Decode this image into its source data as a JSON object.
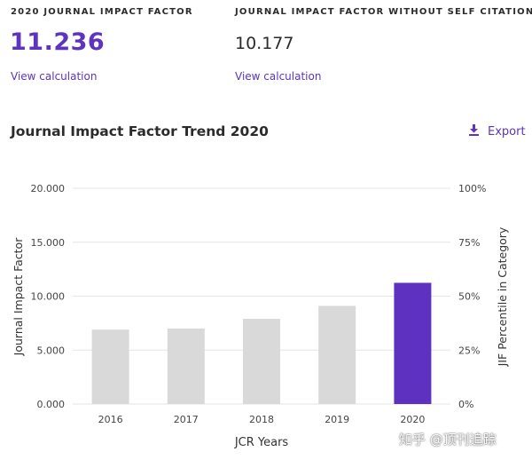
{
  "metrics": {
    "jif_label": "2020 JOURNAL IMPACT FACTOR",
    "jif_value": "11.236",
    "jif_link": "View calculation",
    "jif_nsc_label": "JOURNAL IMPACT FACTOR WITHOUT SELF CITATIONS",
    "jif_nsc_value": "10.177",
    "jif_nsc_link": "View calculation"
  },
  "trend": {
    "title": "Journal Impact Factor Trend 2020",
    "export_label": "Export",
    "export_icon": "download-icon"
  },
  "colors": {
    "accent": "#5e33bf",
    "bar_default": "#d9d9d9",
    "bar_highlight": "#5e31c0",
    "grid": "#e6e6e6"
  },
  "chart_data": {
    "type": "bar",
    "categories": [
      "2016",
      "2017",
      "2018",
      "2019",
      "2020"
    ],
    "values": [
      6.9,
      7.0,
      7.9,
      9.1,
      11.236
    ],
    "highlight_index": 4,
    "xlabel": "JCR Years",
    "ylabel": "Journal Impact Factor",
    "y2label": "JIF Percentile in Category",
    "ylim": [
      0,
      20
    ],
    "y_ticks": [
      "0.000",
      "5.000",
      "10.000",
      "15.000",
      "20.000"
    ],
    "y2_ticks": [
      "0%",
      "25%",
      "50%",
      "75%",
      "100%"
    ],
    "grid": true
  },
  "watermark": "知乎 @顶刊追踪"
}
